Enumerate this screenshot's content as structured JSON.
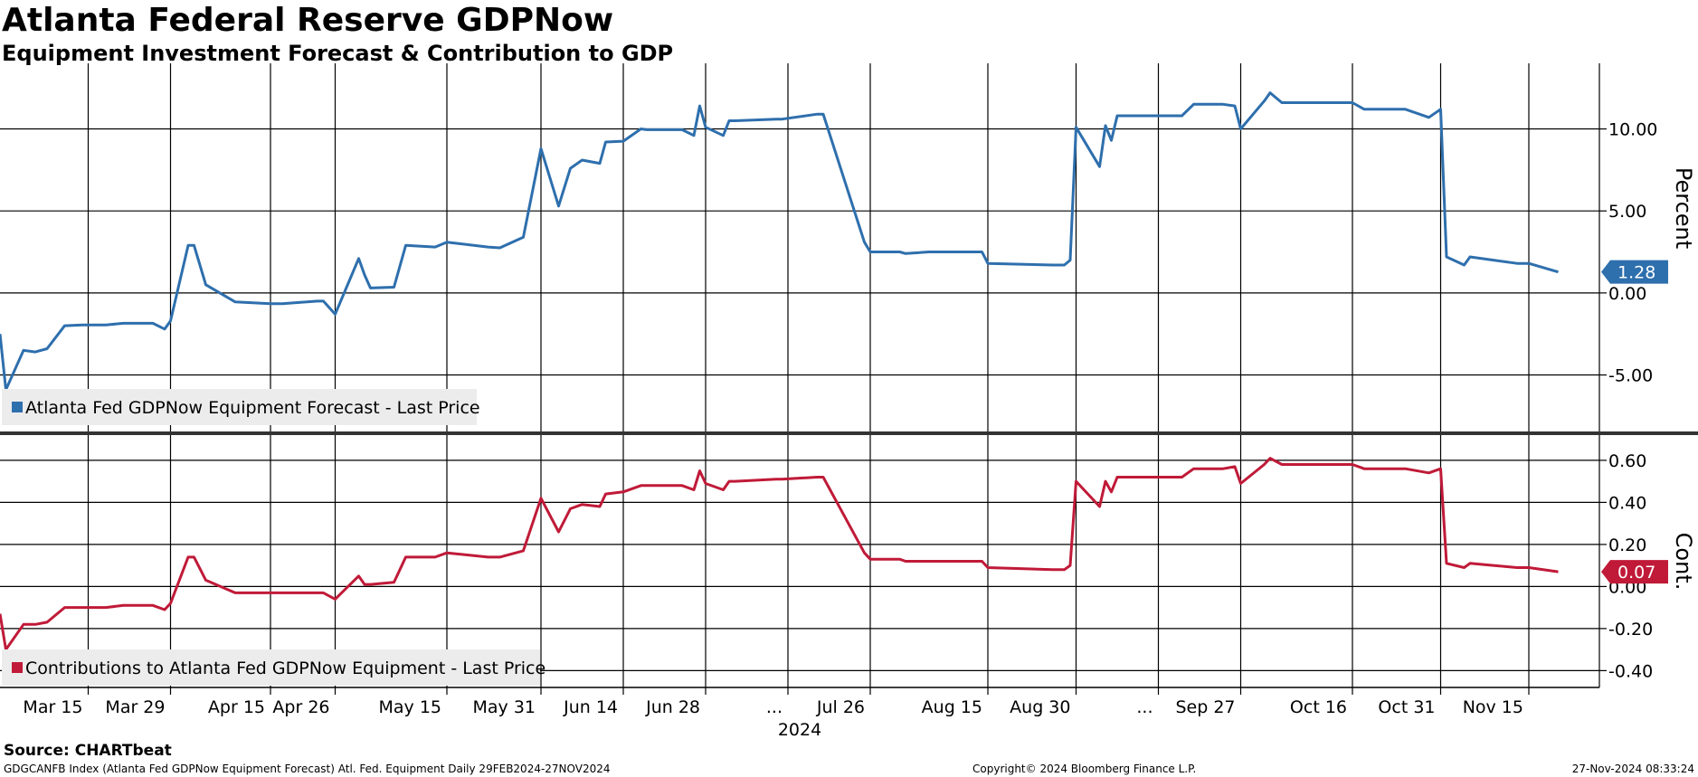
{
  "title": "Atlanta Federal Reserve GDPNow",
  "subtitle": "Equipment Investment Forecast & Contribution to GDP",
  "source": "Source: CHARTbeat",
  "footer": {
    "left": "GDGCANFB Index (Atlanta Fed GDPNow Equipment Forecast) Atl. Fed. Equipment  Daily 29FEB2024-27NOV2024",
    "center": "Copyright© 2024 Bloomberg Finance L.P.",
    "right": "27-Nov-2024 08:33:24"
  },
  "colors": {
    "forecast": "#2e6fad",
    "contribution": "#c01a38",
    "grid": "#000000",
    "legend_bg": "#ececec"
  },
  "chart_data": [
    {
      "type": "line",
      "title": "Atlanta Federal Reserve GDPNow",
      "ylabel": "Percent",
      "ylim": [
        -8.5,
        14
      ],
      "yticks": [
        10,
        5,
        0,
        -5
      ],
      "ytick_labels": [
        "10.00",
        "5.00",
        "0.00",
        "-5.00"
      ],
      "xlim": [
        "2024-02-29",
        "2024-11-27"
      ],
      "grid": true,
      "legend": "bottom-left",
      "last_value_label": "1.28",
      "series": [
        {
          "name": "Atlanta Fed GDPNow Equipment Forecast - Last Price",
          "color": "#2e6fad",
          "x": [
            "2024-02-29",
            "2024-03-01",
            "2024-03-04",
            "2024-03-06",
            "2024-03-08",
            "2024-03-11",
            "2024-03-14",
            "2024-03-18",
            "2024-03-21",
            "2024-03-25",
            "2024-03-26",
            "2024-03-28",
            "2024-03-29",
            "2024-04-01",
            "2024-04-02",
            "2024-04-04",
            "2024-04-09",
            "2024-04-15",
            "2024-04-17",
            "2024-04-23",
            "2024-04-24",
            "2024-04-26",
            "2024-04-30",
            "2024-05-01",
            "2024-05-02",
            "2024-05-06",
            "2024-05-08",
            "2024-05-13",
            "2024-05-15",
            "2024-05-22",
            "2024-05-24",
            "2024-05-28",
            "2024-05-31",
            "2024-06-03",
            "2024-06-05",
            "2024-06-07",
            "2024-06-10",
            "2024-06-11",
            "2024-06-14",
            "2024-06-17",
            "2024-06-18",
            "2024-06-24",
            "2024-06-26",
            "2024-06-27",
            "2024-06-28",
            "2024-07-01",
            "2024-07-02",
            "2024-07-03",
            "2024-07-10",
            "2024-07-11",
            "2024-07-17",
            "2024-07-18",
            "2024-07-25",
            "2024-07-26",
            "2024-07-31",
            "2024-08-01",
            "2024-08-05",
            "2024-08-08",
            "2024-08-14",
            "2024-08-15",
            "2024-08-26",
            "2024-08-28",
            "2024-08-29",
            "2024-08-30",
            "2024-09-03",
            "2024-09-04",
            "2024-09-05",
            "2024-09-06",
            "2024-09-09",
            "2024-09-17",
            "2024-09-19",
            "2024-09-24",
            "2024-09-26",
            "2024-09-27",
            "2024-10-01",
            "2024-10-02",
            "2024-10-04",
            "2024-10-09",
            "2024-10-16",
            "2024-10-18",
            "2024-10-24",
            "2024-10-25",
            "2024-10-29",
            "2024-10-31",
            "2024-11-01",
            "2024-11-04",
            "2024-11-05",
            "2024-11-13",
            "2024-11-15",
            "2024-11-20"
          ],
          "values": [
            -2.5,
            -5.9,
            -3.5,
            -3.6,
            -3.4,
            -2.0,
            -1.95,
            -1.95,
            -1.85,
            -1.85,
            -1.85,
            -2.2,
            -1.7,
            2.9,
            2.9,
            0.5,
            -0.55,
            -0.65,
            -0.65,
            -0.5,
            -0.5,
            -1.3,
            2.1,
            1.1,
            0.3,
            0.35,
            2.9,
            2.8,
            3.1,
            2.8,
            2.75,
            3.4,
            8.8,
            5.3,
            7.6,
            8.1,
            7.9,
            9.2,
            9.25,
            10.0,
            9.95,
            9.95,
            9.6,
            11.4,
            10.1,
            9.6,
            10.5,
            10.5,
            10.6,
            10.6,
            10.9,
            10.9,
            3.1,
            2.5,
            2.5,
            2.4,
            2.5,
            2.5,
            2.5,
            1.8,
            1.7,
            1.7,
            2.0,
            10.1,
            7.7,
            10.2,
            9.3,
            10.8,
            10.8,
            10.8,
            11.5,
            11.5,
            11.4,
            10.0,
            11.7,
            12.2,
            11.6,
            11.6,
            11.6,
            11.2,
            11.2,
            11.2,
            10.7,
            11.2,
            2.2,
            1.7,
            2.2,
            1.8,
            1.8,
            1.28
          ]
        }
      ]
    },
    {
      "type": "line",
      "ylabel": "Cont.",
      "ylim": [
        -0.48,
        0.72
      ],
      "yticks": [
        0.6,
        0.4,
        0.2,
        0.0,
        -0.2,
        -0.4
      ],
      "ytick_labels": [
        "0.60",
        "0.40",
        "0.20",
        "0.00",
        "-0.20",
        "-0.40"
      ],
      "xlim": [
        "2024-02-29",
        "2024-11-27"
      ],
      "grid": true,
      "legend": "bottom-left",
      "last_value_label": "0.07",
      "x_tick_labels": [
        "Mar 15",
        "Mar 29",
        "Apr 15",
        "Apr 26",
        "May 15",
        "May 31",
        "Jun 14",
        "Jun 28",
        "...",
        "Jul 26",
        "Aug 15",
        "Aug 30",
        "...",
        "Sep 27",
        "Oct 16",
        "Oct 31",
        "Nov 15"
      ],
      "x_tick_dates": [
        "2024-03-15",
        "2024-03-29",
        "2024-04-15",
        "2024-04-26",
        "2024-05-15",
        "2024-05-31",
        "2024-06-14",
        "2024-06-28",
        "2024-07-12",
        "2024-07-26",
        "2024-08-15",
        "2024-08-30",
        "2024-09-13",
        "2024-09-27",
        "2024-10-16",
        "2024-10-31",
        "2024-11-15"
      ],
      "x_year_label": "2024",
      "series": [
        {
          "name": "Contributions to Atlanta Fed GDPNow Equipment - Last Price",
          "color": "#c01a38",
          "x": [
            "2024-02-29",
            "2024-03-01",
            "2024-03-04",
            "2024-03-06",
            "2024-03-08",
            "2024-03-11",
            "2024-03-14",
            "2024-03-18",
            "2024-03-21",
            "2024-03-25",
            "2024-03-26",
            "2024-03-28",
            "2024-03-29",
            "2024-04-01",
            "2024-04-02",
            "2024-04-04",
            "2024-04-09",
            "2024-04-15",
            "2024-04-17",
            "2024-04-23",
            "2024-04-24",
            "2024-04-26",
            "2024-04-30",
            "2024-05-01",
            "2024-05-02",
            "2024-05-06",
            "2024-05-08",
            "2024-05-13",
            "2024-05-15",
            "2024-05-22",
            "2024-05-24",
            "2024-05-28",
            "2024-05-31",
            "2024-06-03",
            "2024-06-05",
            "2024-06-07",
            "2024-06-10",
            "2024-06-11",
            "2024-06-14",
            "2024-06-17",
            "2024-06-18",
            "2024-06-24",
            "2024-06-26",
            "2024-06-27",
            "2024-06-28",
            "2024-07-01",
            "2024-07-02",
            "2024-07-03",
            "2024-07-10",
            "2024-07-11",
            "2024-07-17",
            "2024-07-18",
            "2024-07-25",
            "2024-07-26",
            "2024-07-31",
            "2024-08-01",
            "2024-08-05",
            "2024-08-08",
            "2024-08-14",
            "2024-08-15",
            "2024-08-26",
            "2024-08-28",
            "2024-08-29",
            "2024-08-30",
            "2024-09-03",
            "2024-09-04",
            "2024-09-05",
            "2024-09-06",
            "2024-09-09",
            "2024-09-17",
            "2024-09-19",
            "2024-09-24",
            "2024-09-26",
            "2024-09-27",
            "2024-10-01",
            "2024-10-02",
            "2024-10-04",
            "2024-10-09",
            "2024-10-16",
            "2024-10-18",
            "2024-10-24",
            "2024-10-25",
            "2024-10-29",
            "2024-10-31",
            "2024-11-01",
            "2024-11-04",
            "2024-11-05",
            "2024-11-13",
            "2024-11-15",
            "2024-11-20"
          ],
          "values": [
            -0.13,
            -0.3,
            -0.18,
            -0.18,
            -0.17,
            -0.1,
            -0.1,
            -0.1,
            -0.09,
            -0.09,
            -0.09,
            -0.11,
            -0.08,
            0.14,
            0.14,
            0.03,
            -0.03,
            -0.03,
            -0.03,
            -0.03,
            -0.03,
            -0.06,
            0.05,
            0.01,
            0.01,
            0.02,
            0.14,
            0.14,
            0.16,
            0.14,
            0.14,
            0.17,
            0.42,
            0.26,
            0.37,
            0.39,
            0.38,
            0.44,
            0.45,
            0.48,
            0.48,
            0.48,
            0.46,
            0.55,
            0.49,
            0.46,
            0.5,
            0.5,
            0.51,
            0.51,
            0.52,
            0.52,
            0.16,
            0.13,
            0.13,
            0.12,
            0.12,
            0.12,
            0.12,
            0.09,
            0.08,
            0.08,
            0.1,
            0.5,
            0.38,
            0.5,
            0.45,
            0.52,
            0.52,
            0.52,
            0.56,
            0.56,
            0.57,
            0.49,
            0.58,
            0.61,
            0.58,
            0.58,
            0.58,
            0.56,
            0.56,
            0.56,
            0.54,
            0.56,
            0.11,
            0.09,
            0.11,
            0.09,
            0.09,
            0.07
          ]
        }
      ]
    }
  ]
}
